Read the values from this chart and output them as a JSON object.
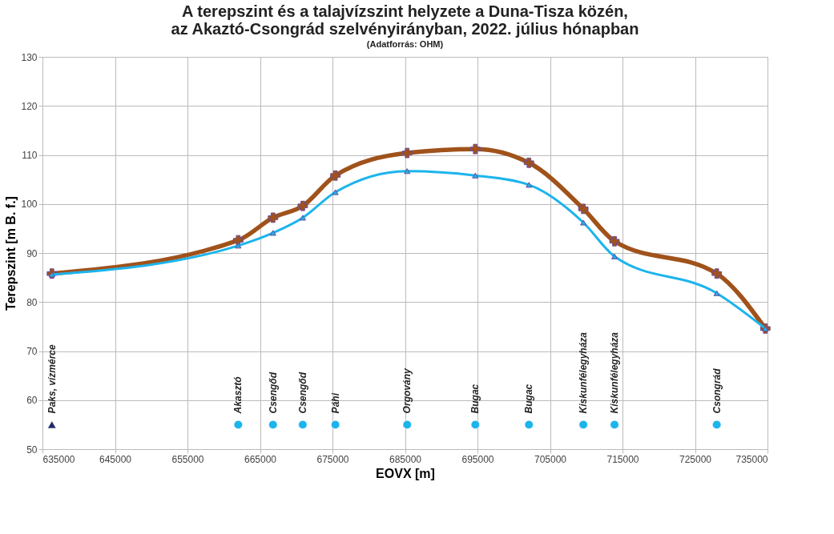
{
  "chart_data": {
    "type": "line",
    "title": [
      "A terepszint és a talajvízszint helyzete a Duna-Tisza közén,",
      "az Akaztó-Csongrád szelvényirányban, 2022. július hónapban"
    ],
    "subtitle": "(Adatforrás: OHM)",
    "xlabel": "EOVX [m]",
    "ylabel": "Terepszint [m B. f.]",
    "x": [
      636300,
      662000,
      666800,
      670900,
      675400,
      685300,
      694700,
      702100,
      709600,
      713900,
      728000,
      734700
    ],
    "series": [
      {
        "color": "#a0521b",
        "marker": "cross",
        "values": [
          85.8,
          92.6,
          97.2,
          99.6,
          105.8,
          110.4,
          111.2,
          108.4,
          99.0,
          92.4,
          85.8,
          74.6
        ]
      },
      {
        "color": "#1cb4ec",
        "marker": "triangle",
        "values": [
          85.6,
          91.5,
          94.1,
          97.2,
          102.4,
          106.7,
          105.8,
          103.9,
          96.2,
          89.3,
          81.8,
          74.6
        ]
      },
      {
        "type": "scatter",
        "color": "#1f2a6b",
        "marker": "triangle",
        "x": [
          636300
        ],
        "values": [
          55
        ],
        "value_labels": [
          "Paks, vízmérce"
        ]
      },
      {
        "type": "scatter",
        "color": "#1cb4ec",
        "marker": "circle",
        "x": [
          662000,
          666800,
          670900,
          675400,
          685300,
          694700,
          702100,
          709600,
          713900,
          728000
        ],
        "values": [
          55,
          55,
          55,
          55,
          55,
          55,
          55,
          55,
          55,
          55
        ],
        "value_labels": [
          "Akasztó",
          "Csengőd",
          "Csengőd",
          "Páhi",
          "Orgovány",
          "Bugac",
          "Bugac",
          "Kiskunfélegyháza",
          "Kiskunfélegyháza",
          "Csongrád"
        ]
      }
    ],
    "xlim": [
      635000,
      735000
    ],
    "xticks": [
      635000,
      645000,
      655000,
      665000,
      675000,
      685000,
      695000,
      705000,
      715000,
      725000,
      735000
    ],
    "ylim": [
      50,
      130
    ],
    "yticks": [
      50,
      60,
      70,
      80,
      90,
      100,
      110,
      120,
      130
    ],
    "grid": true,
    "line_style": "solid"
  }
}
